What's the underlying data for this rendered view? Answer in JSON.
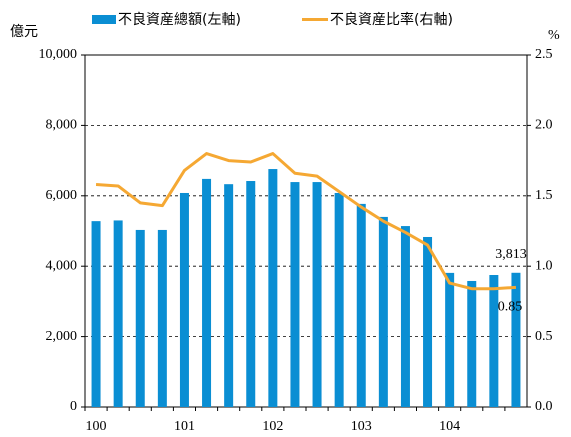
{
  "chart_data": {
    "type": "bar_line",
    "y_unit": "億元",
    "y2_unit": "%",
    "categories": [
      "100",
      null,
      null,
      null,
      "101",
      null,
      null,
      null,
      "102",
      null,
      null,
      null,
      "103",
      null,
      null,
      null,
      "104",
      null,
      null,
      null
    ],
    "series": [
      {
        "name": "不良資産總額(左軸)",
        "type": "bar",
        "color": "#0a8ed3",
        "axis": "y",
        "values": [
          5280,
          5300,
          5030,
          5030,
          6080,
          6480,
          6330,
          6420,
          6760,
          6390,
          6390,
          6080,
          5770,
          5400,
          5140,
          4830,
          3810,
          3580,
          3750,
          3813
        ],
        "value_labels": [
          null,
          null,
          null,
          null,
          null,
          null,
          null,
          null,
          null,
          null,
          null,
          null,
          null,
          null,
          null,
          null,
          null,
          null,
          null,
          "3,813"
        ]
      },
      {
        "name": "不良資産比率(右軸)",
        "type": "line",
        "color": "#f5a833",
        "axis": "y2",
        "values": [
          1.58,
          1.57,
          1.45,
          1.43,
          1.68,
          1.8,
          1.75,
          1.74,
          1.8,
          1.66,
          1.64,
          1.53,
          1.42,
          1.32,
          1.24,
          1.15,
          0.88,
          0.84,
          0.84,
          0.85
        ],
        "value_labels": [
          null,
          null,
          null,
          null,
          null,
          null,
          null,
          null,
          null,
          null,
          null,
          null,
          null,
          null,
          null,
          null,
          null,
          null,
          null,
          "0.85"
        ]
      }
    ],
    "ylim": [
      0,
      10000
    ],
    "yticks": [
      0,
      {
        "value": 2000,
        "label": "2,000"
      },
      {
        "value": 4000,
        "label": "4,000"
      },
      {
        "value": 6000,
        "label": "6,000"
      },
      {
        "value": 8000,
        "label": "8,000"
      },
      {
        "value": 10000,
        "label": "10,000"
      }
    ],
    "y2lim": [
      0,
      2.5
    ],
    "y2ticks": [
      {
        "value": 0,
        "label": "0.0"
      },
      {
        "value": 0.5,
        "label": "0.5"
      },
      {
        "value": 1,
        "label": "1.0"
      },
      {
        "value": 1.5,
        "label": "1.5"
      },
      {
        "value": 2,
        "label": "2.0"
      },
      {
        "value": 2.5,
        "label": "2.5"
      }
    ],
    "grid": true,
    "legend": "top"
  }
}
